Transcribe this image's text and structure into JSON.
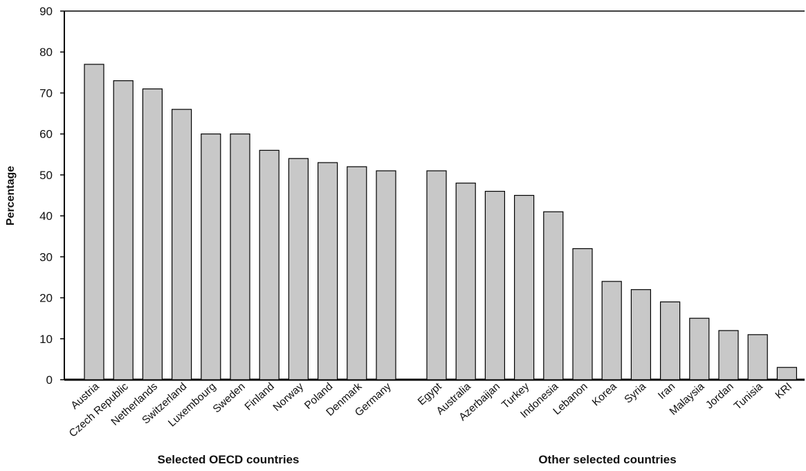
{
  "chart_data": {
    "type": "bar",
    "ylabel": "Percentage",
    "ylim": [
      0,
      90
    ],
    "yticks": [
      0,
      10,
      20,
      30,
      40,
      50,
      60,
      70,
      80,
      90
    ],
    "grid": false,
    "bar_color": "#c8c8c8",
    "groups": [
      {
        "label": "Selected OECD countries",
        "categories": [
          "Austria",
          "Czech Republic",
          "Netherlands",
          "Switzerland",
          "Luxembourg",
          "Sweden",
          "Finland",
          "Norway",
          "Poland",
          "Denmark",
          "Germany"
        ],
        "values": [
          77,
          73,
          71,
          66,
          60,
          60,
          56,
          54,
          53,
          52,
          51
        ]
      },
      {
        "label": "Other selected countries",
        "categories": [
          "Egypt",
          "Australia",
          "Azerbaijan",
          "Turkey",
          "Indonesia",
          "Lebanon",
          "Korea",
          "Syria",
          "Iran",
          "Malaysia",
          "Jordan",
          "Tunisia",
          "KRI"
        ],
        "values": [
          51,
          48,
          46,
          45,
          41,
          32,
          24,
          22,
          19,
          15,
          12,
          11,
          3
        ]
      }
    ]
  }
}
